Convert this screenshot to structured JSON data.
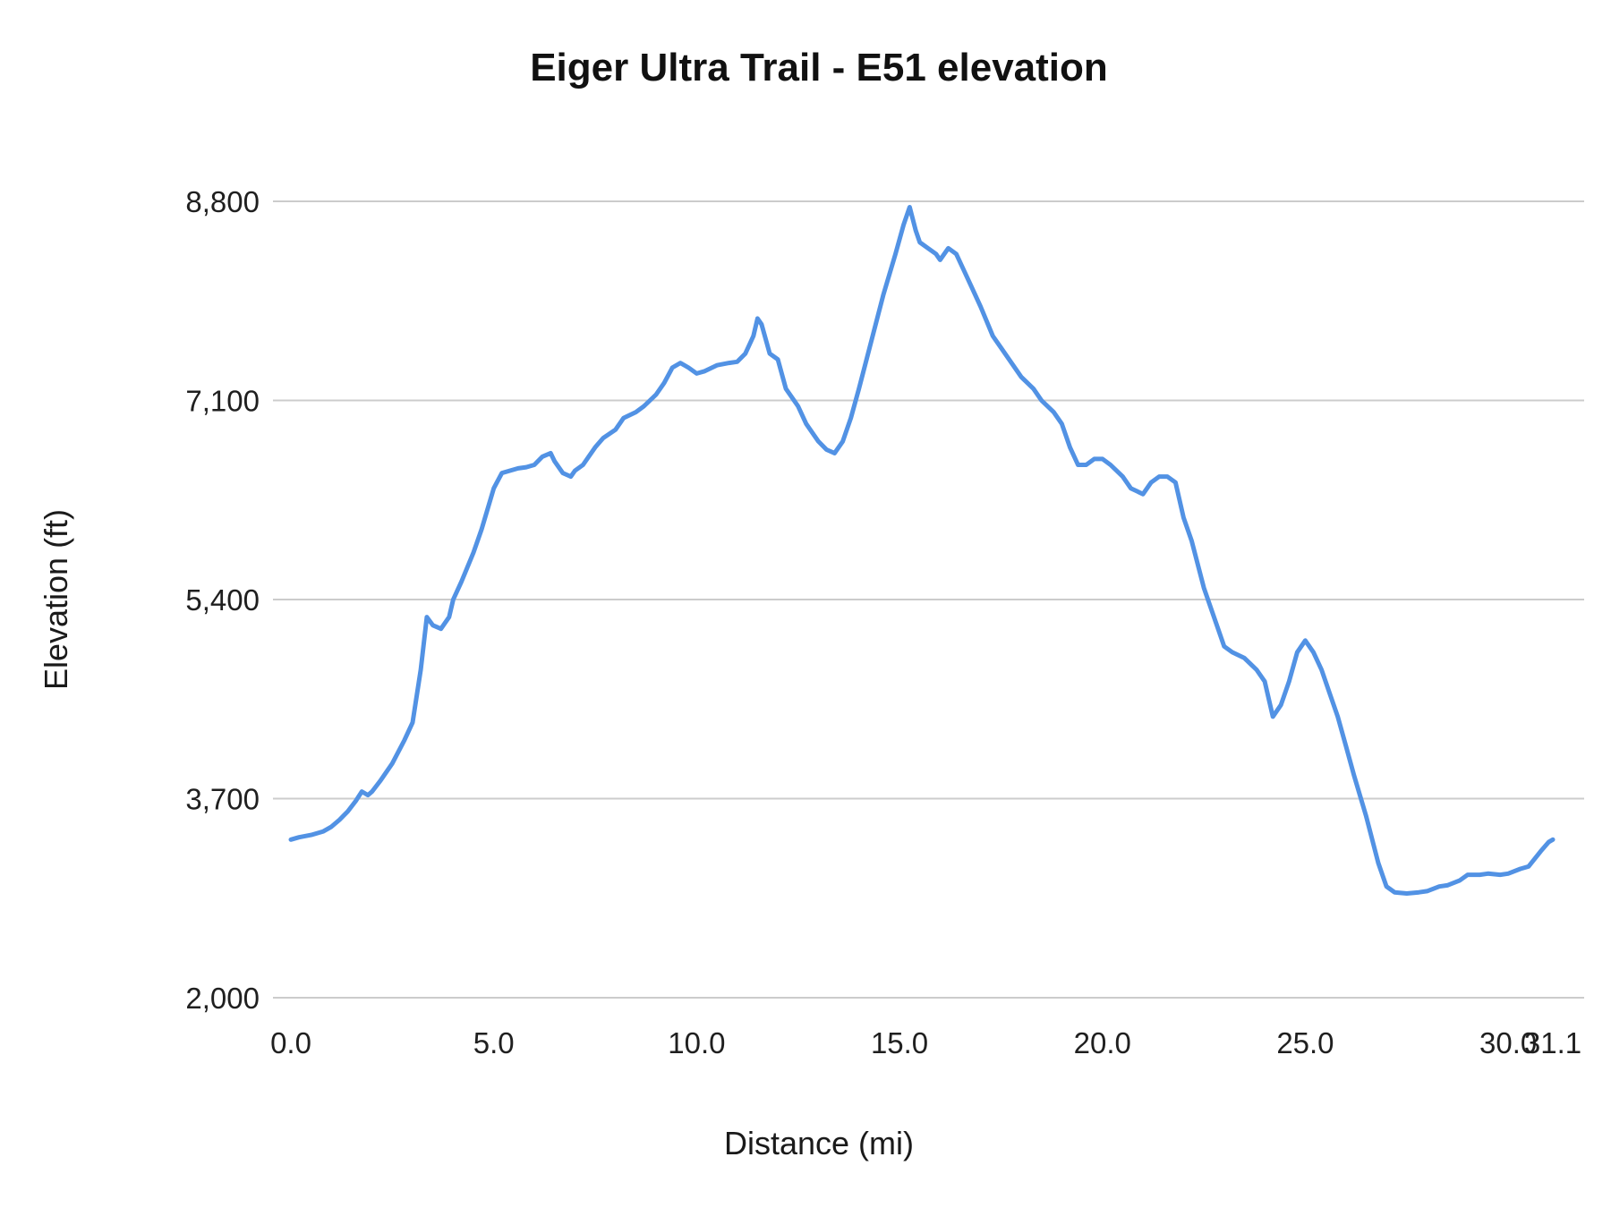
{
  "chart_data": {
    "type": "line",
    "title": "Eiger Ultra Trail - E51 elevation",
    "xlabel": "Distance (mi)",
    "ylabel": "Elevation (ft)",
    "xlim": [
      0,
      31.1
    ],
    "ylim": [
      2000,
      8800
    ],
    "grid": true,
    "legend": "none",
    "line_color": "#5292e4",
    "grid_color": "#cccccc",
    "x_ticks": [
      {
        "value": 0.0,
        "label": "0.0"
      },
      {
        "value": 5.0,
        "label": "5.0"
      },
      {
        "value": 10.0,
        "label": "10.0"
      },
      {
        "value": 15.0,
        "label": "15.0"
      },
      {
        "value": 20.0,
        "label": "20.0"
      },
      {
        "value": 25.0,
        "label": "25.0"
      },
      {
        "value": 30.0,
        "label": "30.0"
      },
      {
        "value": 31.1,
        "label": "31.1"
      }
    ],
    "y_ticks": [
      {
        "value": 2000,
        "label": "2,000"
      },
      {
        "value": 3700,
        "label": "3,700"
      },
      {
        "value": 5400,
        "label": "5,400"
      },
      {
        "value": 7100,
        "label": "7,100"
      },
      {
        "value": 8800,
        "label": "8,800"
      }
    ],
    "series": [
      {
        "name": "elevation",
        "x": [
          0,
          0.2,
          0.5,
          0.8,
          1.0,
          1.2,
          1.4,
          1.6,
          1.75,
          1.9,
          2.0,
          2.2,
          2.5,
          2.8,
          3.0,
          3.2,
          3.35,
          3.5,
          3.7,
          3.9,
          4.0,
          4.2,
          4.5,
          4.7,
          5.0,
          5.2,
          5.4,
          5.6,
          5.8,
          6.0,
          6.2,
          6.4,
          6.5,
          6.7,
          6.9,
          7.0,
          7.2,
          7.5,
          7.7,
          8.0,
          8.2,
          8.5,
          8.7,
          9.0,
          9.2,
          9.4,
          9.6,
          9.8,
          10.0,
          10.2,
          10.5,
          10.8,
          11.0,
          11.2,
          11.4,
          11.5,
          11.6,
          11.8,
          12.0,
          12.2,
          12.5,
          12.7,
          13.0,
          13.2,
          13.4,
          13.6,
          13.8,
          14.0,
          14.3,
          14.6,
          14.9,
          15.1,
          15.25,
          15.4,
          15.5,
          15.7,
          15.9,
          16.0,
          16.2,
          16.4,
          16.6,
          16.8,
          17.0,
          17.3,
          17.5,
          17.8,
          18.0,
          18.3,
          18.5,
          18.8,
          19.0,
          19.2,
          19.4,
          19.6,
          19.8,
          20.0,
          20.2,
          20.5,
          20.7,
          21.0,
          21.2,
          21.4,
          21.6,
          21.8,
          22.0,
          22.2,
          22.5,
          22.8,
          23.0,
          23.2,
          23.5,
          23.8,
          24.0,
          24.2,
          24.4,
          24.6,
          24.8,
          25.0,
          25.2,
          25.4,
          25.6,
          25.8,
          26.0,
          26.2,
          26.5,
          26.8,
          27.0,
          27.2,
          27.5,
          27.8,
          28.0,
          28.3,
          28.5,
          28.8,
          29.0,
          29.3,
          29.5,
          29.8,
          30.0,
          30.3,
          30.5,
          30.8,
          31.0,
          31.1
        ],
        "y": [
          3350,
          3370,
          3390,
          3420,
          3460,
          3520,
          3590,
          3680,
          3760,
          3730,
          3760,
          3850,
          4000,
          4200,
          4350,
          4800,
          5250,
          5180,
          5150,
          5250,
          5400,
          5550,
          5800,
          6000,
          6350,
          6480,
          6500,
          6520,
          6530,
          6550,
          6620,
          6650,
          6580,
          6480,
          6450,
          6500,
          6550,
          6700,
          6780,
          6850,
          6950,
          7000,
          7050,
          7150,
          7250,
          7380,
          7420,
          7380,
          7330,
          7350,
          7400,
          7420,
          7430,
          7500,
          7650,
          7800,
          7750,
          7500,
          7450,
          7200,
          7050,
          6900,
          6750,
          6680,
          6650,
          6750,
          6950,
          7200,
          7600,
          8000,
          8350,
          8600,
          8750,
          8550,
          8450,
          8400,
          8350,
          8300,
          8400,
          8350,
          8200,
          8050,
          7900,
          7650,
          7550,
          7400,
          7300,
          7200,
          7100,
          7000,
          6900,
          6700,
          6550,
          6550,
          6600,
          6600,
          6550,
          6450,
          6350,
          6300,
          6400,
          6450,
          6450,
          6400,
          6100,
          5900,
          5500,
          5200,
          5000,
          4950,
          4900,
          4800,
          4700,
          4400,
          4500,
          4700,
          4950,
          5050,
          4950,
          4800,
          4600,
          4400,
          4150,
          3900,
          3550,
          3150,
          2950,
          2900,
          2890,
          2900,
          2910,
          2950,
          2960,
          3000,
          3050,
          3050,
          3060,
          3050,
          3060,
          3100,
          3120,
          3250,
          3330,
          3350
        ]
      }
    ]
  }
}
